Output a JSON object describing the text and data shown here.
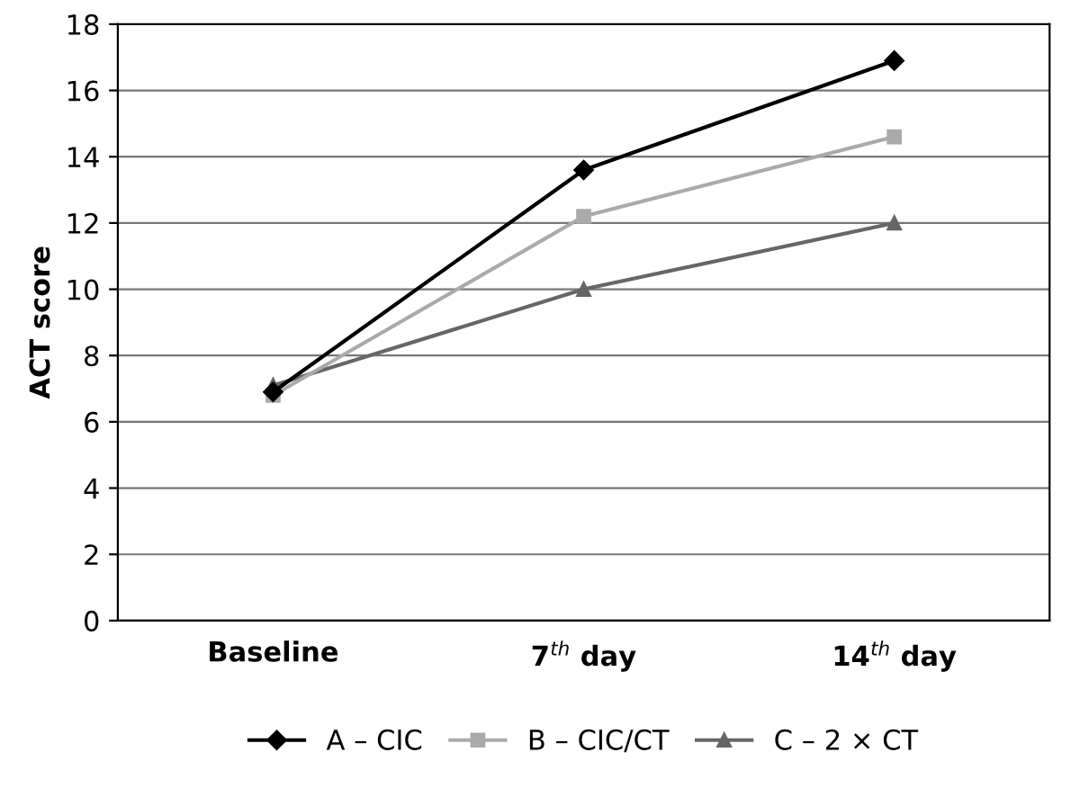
{
  "chart_data": {
    "type": "line",
    "ylabel": "ACT score",
    "categories": [
      "Baseline",
      "7$^{th}$ day",
      "14$^{th}$ day"
    ],
    "series": [
      {
        "name": "A – CIC",
        "color": "#000000",
        "marker": "diamond",
        "values": [
          6.9,
          13.6,
          16.9
        ]
      },
      {
        "name": "B – CIC/CT",
        "color": "#aaaaaa",
        "marker": "square",
        "values": [
          6.8,
          12.2,
          14.6
        ]
      },
      {
        "name": "C – 2 × CT",
        "color": "#666666",
        "marker": "triangle",
        "values": [
          7.1,
          10.0,
          12.0
        ]
      }
    ],
    "ylim": [
      0,
      18
    ],
    "yticks": [
      0,
      2,
      4,
      6,
      8,
      10,
      12,
      14,
      16,
      18
    ],
    "grid": "y",
    "legend": "bottom",
    "line_style": "solid"
  }
}
